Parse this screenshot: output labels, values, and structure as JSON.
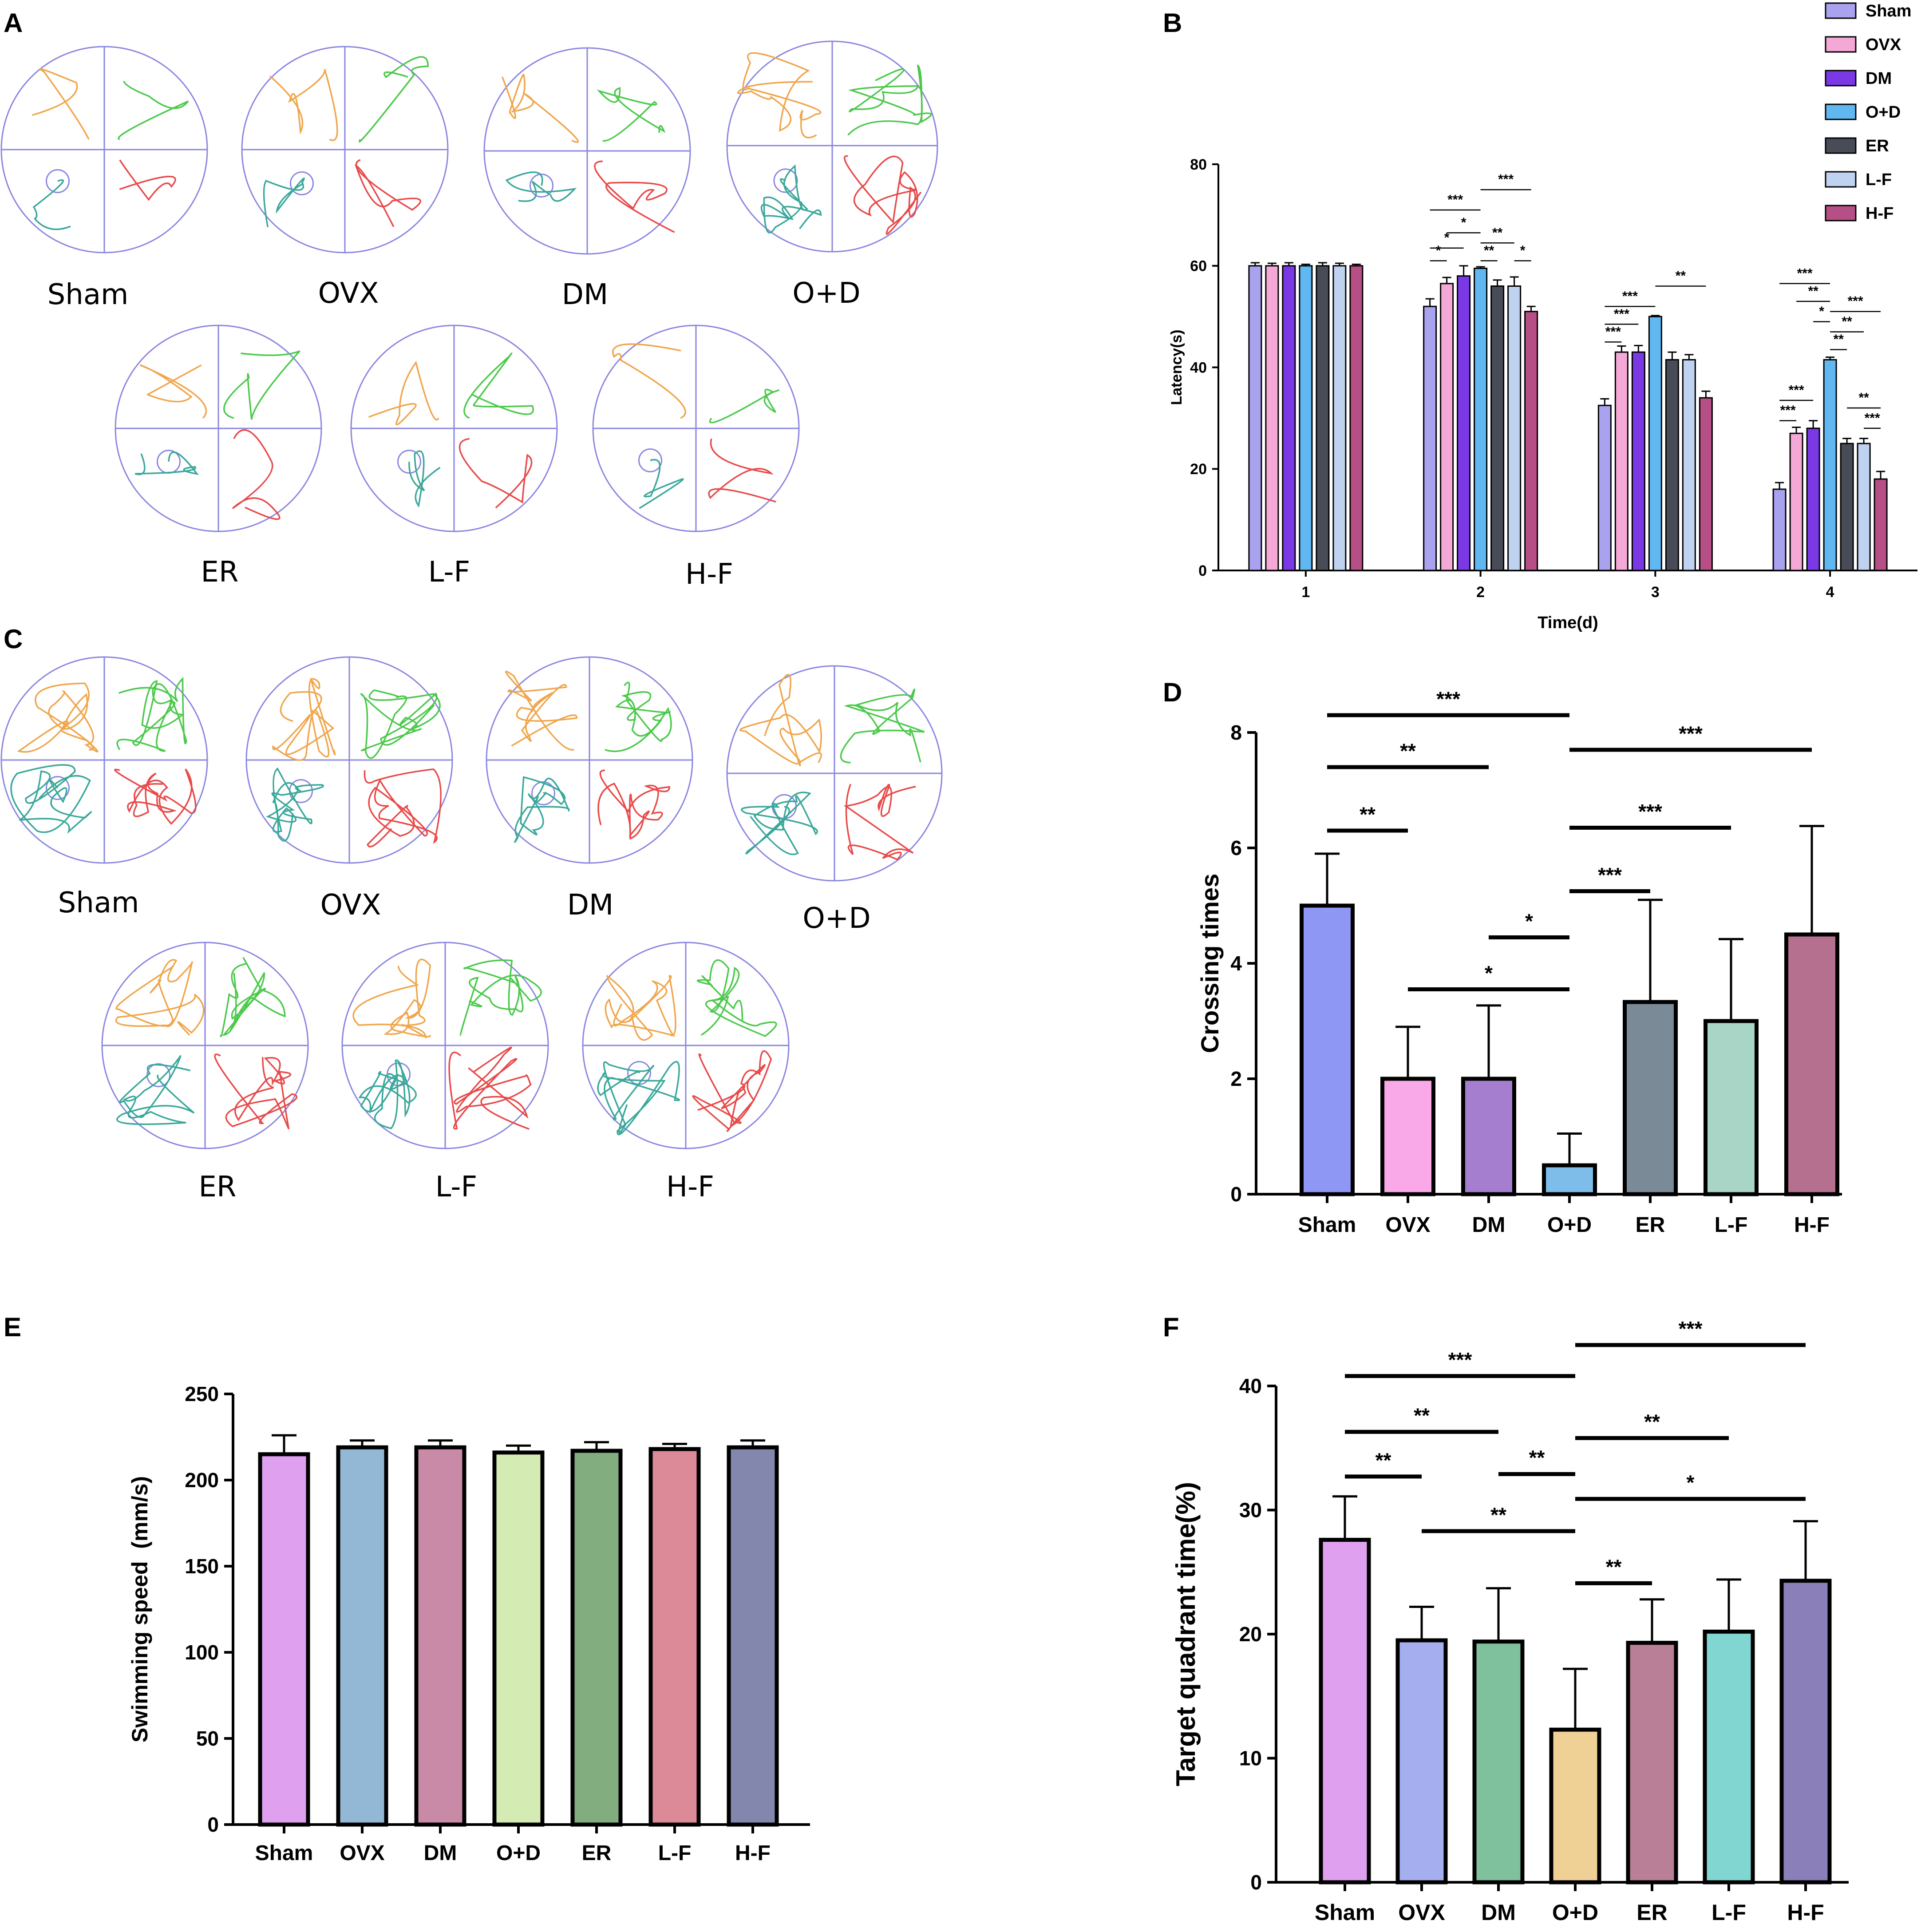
{
  "panels": {
    "A": {
      "letter": "A",
      "labels": [
        "Sham",
        "OVX",
        "DM",
        "O+D",
        "ER",
        "L-F",
        "H-F"
      ]
    },
    "C": {
      "letter": "C",
      "labels": [
        "Sham",
        "OVX",
        "DM",
        "O+D",
        "ER",
        "L-F",
        "H-F"
      ]
    }
  },
  "path_colors": [
    "#f0a64d",
    "#4cc94c",
    "#e84a4a",
    "#3aa89a"
  ],
  "maze_line_color": "#8a86e0",
  "chart_data": [
    {
      "id": "B",
      "letter": "B",
      "type": "bar",
      "title": "",
      "xlabel": "Time(d)",
      "ylabel": "Latency(s)",
      "ylim": [
        0,
        80
      ],
      "yticks": [
        0,
        20,
        40,
        60,
        80
      ],
      "grid": false,
      "legend_position": "top-right",
      "categories": [
        "1",
        "2",
        "3",
        "4"
      ],
      "series": [
        {
          "name": "Sham",
          "color": "#a9a2ef",
          "values": [
            60,
            52,
            32.5,
            16
          ],
          "errors": [
            0.6,
            1.5,
            1.3,
            1.3
          ]
        },
        {
          "name": "OVX",
          "color": "#f3a8d6",
          "values": [
            60,
            56.5,
            43,
            27
          ],
          "errors": [
            0.5,
            1.2,
            1.2,
            1.2
          ]
        },
        {
          "name": "DM",
          "color": "#7b39e6",
          "values": [
            60,
            58,
            43,
            28
          ],
          "errors": [
            0.6,
            2,
            1.3,
            1.5
          ]
        },
        {
          "name": "O+D",
          "color": "#61b8f0",
          "values": [
            60,
            59.5,
            50,
            41.5
          ],
          "errors": [
            0.3,
            0.3,
            0.2,
            0.5
          ]
        },
        {
          "name": "ER",
          "color": "#474c57",
          "values": [
            60,
            56,
            41.5,
            25
          ],
          "errors": [
            0.6,
            1.2,
            1.5,
            1
          ]
        },
        {
          "name": "L-F",
          "color": "#bfd2f0",
          "values": [
            60,
            56,
            41.5,
            25
          ],
          "errors": [
            0.5,
            1.8,
            1,
            1
          ]
        },
        {
          "name": "H-F",
          "color": "#b64f86",
          "values": [
            60,
            51,
            34,
            18
          ],
          "errors": [
            0.3,
            1,
            1.3,
            1.5
          ]
        }
      ],
      "annotations": [
        {
          "label": "*",
          "day": 1,
          "from": 0,
          "to": 1,
          "y": 61
        },
        {
          "label": "*",
          "day": 1,
          "from": 0,
          "to": 2,
          "y": 63.5
        },
        {
          "label": "*",
          "day": 1,
          "from": 1,
          "to": 3,
          "y": 66.5
        },
        {
          "label": "***",
          "day": 1,
          "from": 0,
          "to": 3,
          "y": 71
        },
        {
          "label": "**",
          "day": 1,
          "from": 3,
          "to": 4,
          "y": 61
        },
        {
          "label": "**",
          "day": 1,
          "from": 3,
          "to": 5,
          "y": 64.5
        },
        {
          "label": "*",
          "day": 1,
          "from": 5,
          "to": 6,
          "y": 61
        },
        {
          "label": "***",
          "day": 1,
          "from": 3,
          "to": 6,
          "y": 75
        },
        {
          "label": "***",
          "day": 2,
          "from": 0,
          "to": 1,
          "y": 45
        },
        {
          "label": "***",
          "day": 2,
          "from": 0,
          "to": 2,
          "y": 48.5
        },
        {
          "label": "***",
          "day": 2,
          "from": 0,
          "to": 3,
          "y": 52
        },
        {
          "label": "**",
          "day": 2,
          "from": 3,
          "to": 6,
          "y": 56
        },
        {
          "label": "***",
          "day": 3,
          "from": 0,
          "to": 1,
          "y": 29.5
        },
        {
          "label": "***",
          "day": 3,
          "from": 0,
          "to": 2,
          "y": 33.5
        },
        {
          "label": "**",
          "day": 3,
          "from": 3,
          "to": 4,
          "y": 43.5
        },
        {
          "label": "**",
          "day": 3,
          "from": 3,
          "to": 5,
          "y": 47
        },
        {
          "label": "*",
          "day": 3,
          "from": 2,
          "to": 3,
          "y": 49
        },
        {
          "label": "**",
          "day": 3,
          "from": 1,
          "to": 3,
          "y": 53
        },
        {
          "label": "***",
          "day": 3,
          "from": 0,
          "to": 3,
          "y": 56.5
        },
        {
          "label": "***",
          "day": 3,
          "from": 3,
          "to": 6,
          "y": 51
        },
        {
          "label": "***",
          "day": 3,
          "from": 5,
          "to": 6,
          "y": 28
        },
        {
          "label": "**",
          "day": 3,
          "from": 4,
          "to": 6,
          "y": 32
        }
      ]
    },
    {
      "id": "D",
      "letter": "D",
      "type": "bar",
      "title": "",
      "xlabel": "",
      "ylabel": "Crossing times",
      "ylim": [
        0,
        8
      ],
      "yticks": [
        0,
        2,
        4,
        6,
        8
      ],
      "grid": false,
      "categories": [
        "Sham",
        "OVX",
        "DM",
        "O+D",
        "ER",
        "L-F",
        "H-F"
      ],
      "values": [
        5,
        2,
        2,
        0.5,
        3.33,
        3,
        4.5
      ],
      "errors": [
        0.9,
        0.9,
        1.27,
        0.55,
        1.77,
        1.42,
        1.88
      ],
      "colors": [
        "#8f97f5",
        "#f9a8e8",
        "#a57ed0",
        "#7ebde9",
        "#7a8a96",
        "#a8d5c6",
        "#b5708f"
      ],
      "annotations": [
        {
          "label": "***",
          "from": 0,
          "to": 3,
          "y": 8.3
        },
        {
          "label": "**",
          "from": 0,
          "to": 2,
          "y": 7.4
        },
        {
          "label": "**",
          "from": 0,
          "to": 1,
          "y": 6.3
        },
        {
          "label": "*",
          "from": 2,
          "to": 3,
          "y": 4.45
        },
        {
          "label": "*",
          "from": 1,
          "to": 3,
          "y": 3.55
        },
        {
          "label": "***",
          "from": 3,
          "to": 6,
          "y": 7.7
        },
        {
          "label": "***",
          "from": 3,
          "to": 5,
          "y": 6.35
        },
        {
          "label": "***",
          "from": 3,
          "to": 4,
          "y": 5.25
        }
      ]
    },
    {
      "id": "E",
      "letter": "E",
      "type": "bar",
      "title": "",
      "xlabel": "",
      "ylabel": "Swimming speed  (mm/s)",
      "ylim": [
        0,
        250
      ],
      "yticks": [
        0,
        50,
        100,
        150,
        200,
        250
      ],
      "grid": false,
      "categories": [
        "Sham",
        "OVX",
        "DM",
        "O+D",
        "ER",
        "L-F",
        "H-F"
      ],
      "values": [
        215,
        219,
        219,
        216,
        217,
        218,
        219
      ],
      "errors": [
        11,
        4,
        4,
        4,
        5,
        3,
        4
      ],
      "colors": [
        "#e0a0f0",
        "#93b8d6",
        "#c98aa8",
        "#d5ebb4",
        "#82ad7e",
        "#dd8a98",
        "#8387ad"
      ],
      "annotations": []
    },
    {
      "id": "F",
      "letter": "F",
      "type": "bar",
      "title": "",
      "xlabel": "",
      "ylabel": "Target quadrant time(%)",
      "ylim": [
        0,
        40
      ],
      "yticks": [
        0,
        10,
        20,
        30,
        40
      ],
      "grid": false,
      "categories": [
        "Sham",
        "OVX",
        "DM",
        "O+D",
        "ER",
        "L-F",
        "H-F"
      ],
      "values": [
        27.6,
        19.5,
        19.4,
        12.3,
        19.3,
        20.2,
        24.3
      ],
      "errors": [
        3.5,
        2.7,
        4.3,
        4.9,
        3.5,
        4.2,
        4.8
      ],
      "colors": [
        "#e0a0f0",
        "#a5aff0",
        "#80c19d",
        "#efd195",
        "#b87f96",
        "#82d6d2",
        "#8a7fb8"
      ],
      "annotations": [
        {
          "label": "***",
          "from": 0,
          "to": 3,
          "y": 40.8
        },
        {
          "label": "**",
          "from": 0,
          "to": 2,
          "y": 36.3
        },
        {
          "label": "**",
          "from": 0,
          "to": 1,
          "y": 32.7
        },
        {
          "label": "**",
          "from": 2,
          "to": 3,
          "y": 32.9
        },
        {
          "label": "**",
          "from": 1,
          "to": 3,
          "y": 28.3
        },
        {
          "label": "***",
          "from": 3,
          "to": 6,
          "y": 43.3
        },
        {
          "label": "**",
          "from": 3,
          "to": 5,
          "y": 35.8
        },
        {
          "label": "*",
          "from": 3,
          "to": 6,
          "y": 30.9
        },
        {
          "label": "**",
          "from": 3,
          "to": 4,
          "y": 24.1
        }
      ]
    }
  ]
}
